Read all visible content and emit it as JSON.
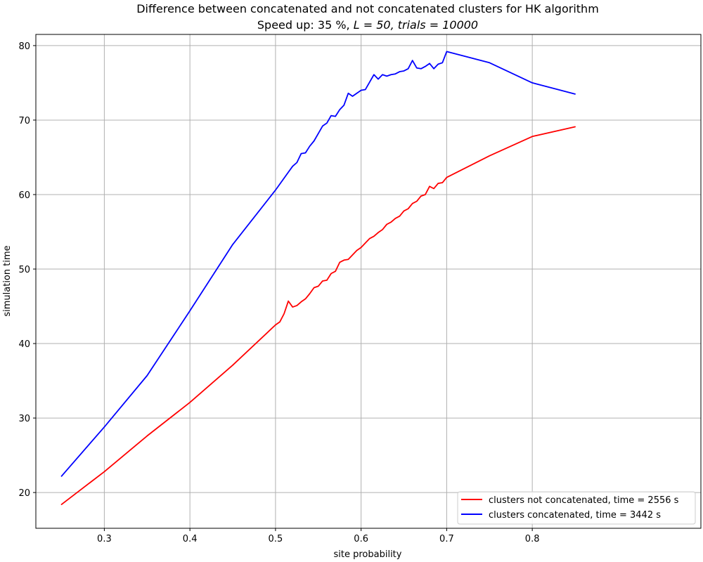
{
  "chart_data": {
    "type": "line",
    "title": "Difference between concatenated and not concatenated clusters for HK algorithm",
    "subtitle_prefix": "Speed up: 35 %, ",
    "subtitle_math": "L = 50, trials = 10000",
    "xlabel": "site probability",
    "ylabel": "simulation time",
    "xlim": [
      0.22,
      0.997
    ],
    "ylim": [
      15.2,
      81.5
    ],
    "xticks": [
      {
        "value": 0.3,
        "label": "0.3"
      },
      {
        "value": 0.4,
        "label": "0.4"
      },
      {
        "value": 0.5,
        "label": "0.5"
      },
      {
        "value": 0.6,
        "label": "0.6"
      },
      {
        "value": 0.7,
        "label": "0.7"
      },
      {
        "value": 0.8,
        "label": "0.8"
      }
    ],
    "yticks": [
      {
        "value": 20,
        "label": "20"
      },
      {
        "value": 30,
        "label": "30"
      },
      {
        "value": 40,
        "label": "40"
      },
      {
        "value": 50,
        "label": "50"
      },
      {
        "value": 60,
        "label": "60"
      },
      {
        "value": 70,
        "label": "70"
      },
      {
        "value": 80,
        "label": "80"
      }
    ],
    "grid": true,
    "legend_position": "lower-right",
    "series": [
      {
        "name": "clusters not concatenated, time = 2556 s",
        "color": "#ff0000",
        "points": [
          [
            0.25,
            18.4
          ],
          [
            0.3,
            22.8
          ],
          [
            0.35,
            27.6
          ],
          [
            0.4,
            32.1
          ],
          [
            0.45,
            37.1
          ],
          [
            0.5,
            42.5
          ],
          [
            0.505,
            42.9
          ],
          [
            0.51,
            44.0
          ],
          [
            0.515,
            45.7
          ],
          [
            0.52,
            44.9
          ],
          [
            0.525,
            45.1
          ],
          [
            0.53,
            45.6
          ],
          [
            0.535,
            46.0
          ],
          [
            0.54,
            46.7
          ],
          [
            0.545,
            47.5
          ],
          [
            0.55,
            47.7
          ],
          [
            0.555,
            48.4
          ],
          [
            0.56,
            48.5
          ],
          [
            0.565,
            49.4
          ],
          [
            0.57,
            49.7
          ],
          [
            0.575,
            50.9
          ],
          [
            0.58,
            51.2
          ],
          [
            0.585,
            51.3
          ],
          [
            0.59,
            51.9
          ],
          [
            0.595,
            52.5
          ],
          [
            0.6,
            52.9
          ],
          [
            0.605,
            53.5
          ],
          [
            0.61,
            54.1
          ],
          [
            0.615,
            54.4
          ],
          [
            0.62,
            54.9
          ],
          [
            0.625,
            55.3
          ],
          [
            0.63,
            56.0
          ],
          [
            0.635,
            56.3
          ],
          [
            0.64,
            56.8
          ],
          [
            0.645,
            57.1
          ],
          [
            0.65,
            57.8
          ],
          [
            0.655,
            58.1
          ],
          [
            0.66,
            58.8
          ],
          [
            0.665,
            59.1
          ],
          [
            0.67,
            59.8
          ],
          [
            0.675,
            60.0
          ],
          [
            0.68,
            61.1
          ],
          [
            0.685,
            60.8
          ],
          [
            0.69,
            61.5
          ],
          [
            0.695,
            61.6
          ],
          [
            0.7,
            62.3
          ],
          [
            0.75,
            65.2
          ],
          [
            0.8,
            67.8
          ],
          [
            0.85,
            69.1
          ]
        ]
      },
      {
        "name": "clusters concatenated, time = 3442 s",
        "color": "#0000ff",
        "points": [
          [
            0.25,
            22.2
          ],
          [
            0.3,
            28.8
          ],
          [
            0.35,
            35.7
          ],
          [
            0.4,
            44.4
          ],
          [
            0.45,
            53.3
          ],
          [
            0.5,
            60.6
          ],
          [
            0.505,
            61.4
          ],
          [
            0.51,
            62.2
          ],
          [
            0.515,
            63.0
          ],
          [
            0.52,
            63.8
          ],
          [
            0.525,
            64.3
          ],
          [
            0.53,
            65.5
          ],
          [
            0.535,
            65.6
          ],
          [
            0.54,
            66.5
          ],
          [
            0.545,
            67.2
          ],
          [
            0.55,
            68.2
          ],
          [
            0.555,
            69.2
          ],
          [
            0.56,
            69.6
          ],
          [
            0.565,
            70.6
          ],
          [
            0.57,
            70.5
          ],
          [
            0.575,
            71.4
          ],
          [
            0.58,
            72.0
          ],
          [
            0.585,
            73.6
          ],
          [
            0.59,
            73.2
          ],
          [
            0.595,
            73.6
          ],
          [
            0.6,
            74.0
          ],
          [
            0.605,
            74.1
          ],
          [
            0.61,
            75.1
          ],
          [
            0.615,
            76.1
          ],
          [
            0.62,
            75.5
          ],
          [
            0.625,
            76.1
          ],
          [
            0.63,
            75.9
          ],
          [
            0.635,
            76.1
          ],
          [
            0.64,
            76.2
          ],
          [
            0.645,
            76.5
          ],
          [
            0.65,
            76.6
          ],
          [
            0.655,
            76.9
          ],
          [
            0.66,
            78.0
          ],
          [
            0.665,
            77.0
          ],
          [
            0.67,
            76.9
          ],
          [
            0.675,
            77.2
          ],
          [
            0.68,
            77.6
          ],
          [
            0.685,
            76.9
          ],
          [
            0.69,
            77.5
          ],
          [
            0.695,
            77.7
          ],
          [
            0.7,
            79.2
          ],
          [
            0.75,
            77.7
          ],
          [
            0.8,
            75.0
          ],
          [
            0.85,
            73.5
          ]
        ]
      }
    ]
  }
}
